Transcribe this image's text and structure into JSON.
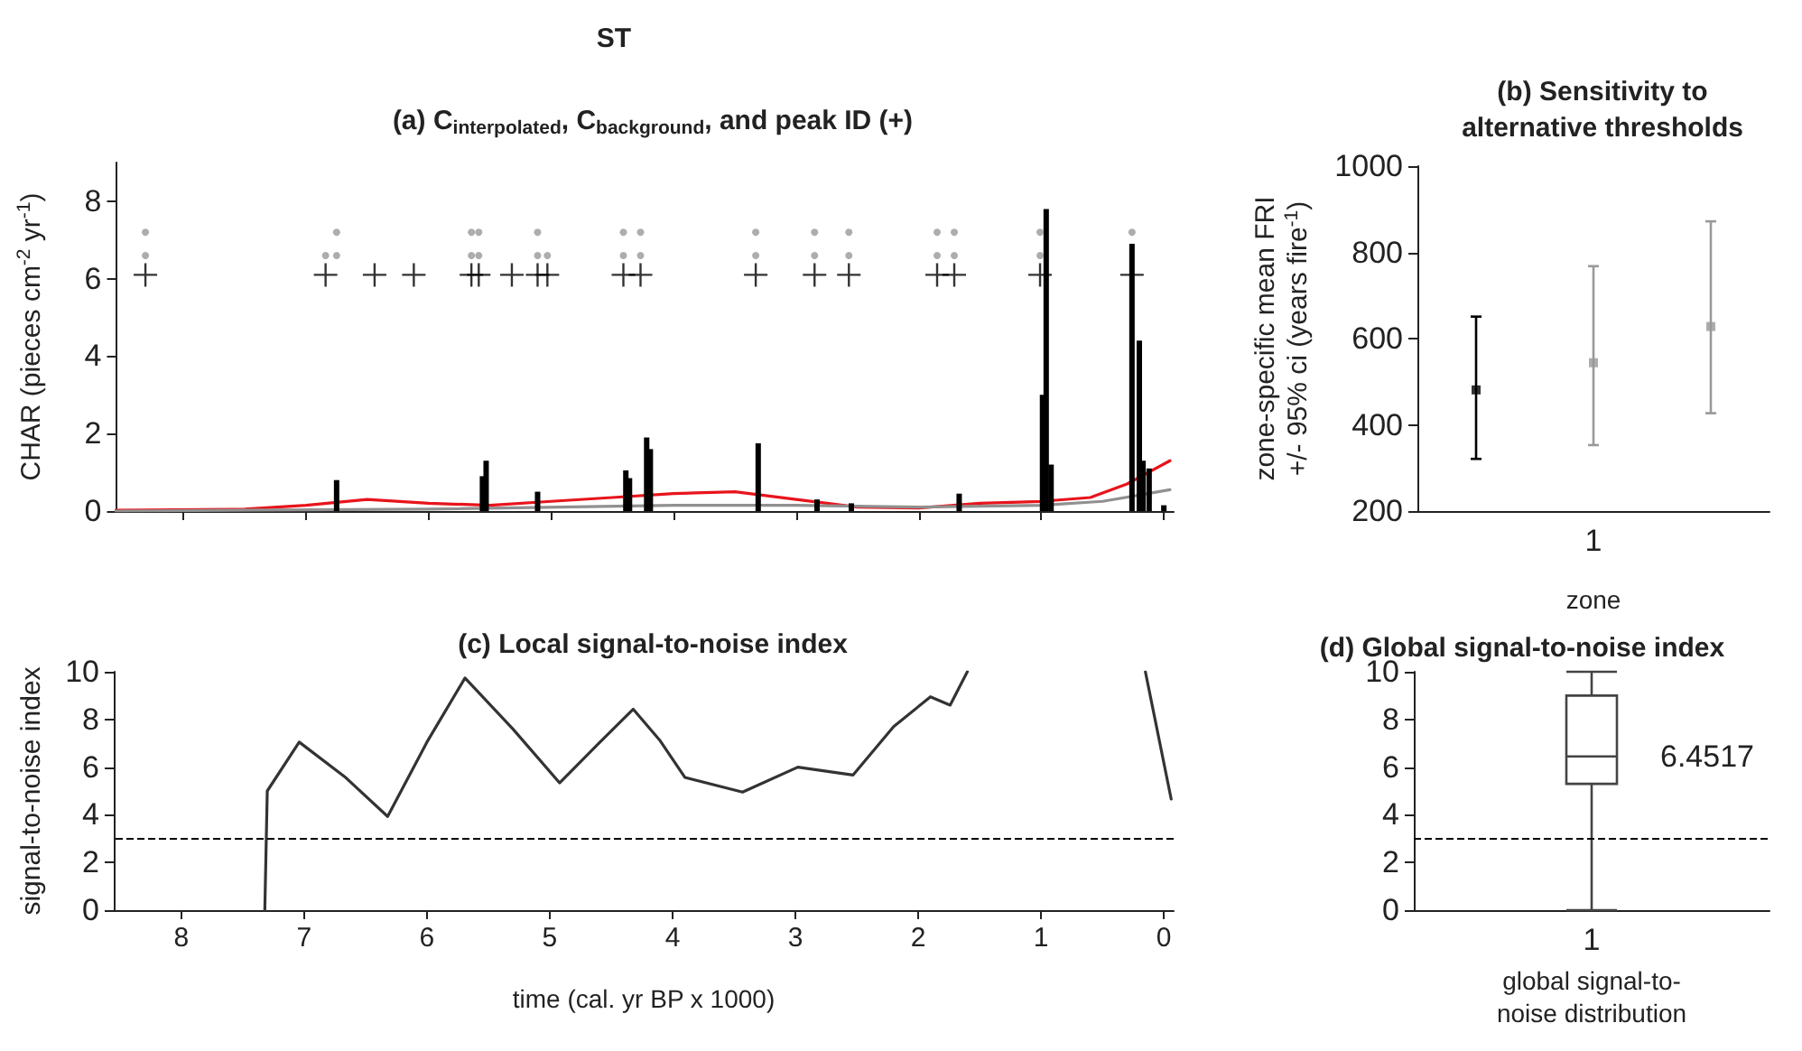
{
  "chart_data": [
    {
      "type": "bar",
      "title": "(a) C$_{interpolated}$, C$_{background}$, and peak ID (+)",
      "ylabel": "CHAR (pieces cm$^{-2}$ yr$^{-1}$)",
      "annotations": [
        "ST"
      ],
      "xlim": [
        8.55,
        -0.08
      ],
      "xticks": [
        8,
        7,
        6,
        5,
        4,
        3,
        2,
        1,
        0
      ],
      "ylim": [
        0,
        9
      ],
      "yticks": [
        0,
        2,
        4,
        6,
        8
      ],
      "tick_labels": "y",
      "series": [
        {
          "type": "bar",
          "color": "#000000",
          "x": [
            6.75,
            5.56,
            5.53,
            5.11,
            4.39,
            4.36,
            4.22,
            4.19,
            3.31,
            2.83,
            2.55,
            1.67,
            0.99,
            0.96,
            0.92,
            0.26,
            0.2,
            0.17,
            0.12,
            0.0
          ],
          "values": [
            0.8,
            0.9,
            1.3,
            0.5,
            1.05,
            0.85,
            1.9,
            1.6,
            1.75,
            0.3,
            0.2,
            0.45,
            3.0,
            7.8,
            1.2,
            6.9,
            4.4,
            1.3,
            1.1,
            0.15
          ]
        },
        {
          "type": "line",
          "color": "#e8141b",
          "x": [
            8.55,
            7.5,
            7.0,
            6.5,
            6.0,
            5.5,
            5.0,
            4.5,
            4.0,
            3.5,
            3.0,
            2.5,
            2.0,
            1.5,
            1.0,
            0.6,
            0.3,
            -0.05
          ],
          "values": [
            0.02,
            0.05,
            0.15,
            0.3,
            0.2,
            0.15,
            0.25,
            0.35,
            0.45,
            0.5,
            0.3,
            0.1,
            0.08,
            0.2,
            0.25,
            0.35,
            0.7,
            1.3
          ]
        },
        {
          "type": "line",
          "color": "#909090",
          "x": [
            8.55,
            6.0,
            4.0,
            3.0,
            2.0,
            1.0,
            0.5,
            -0.05
          ],
          "values": [
            0,
            0.05,
            0.15,
            0.15,
            0.1,
            0.15,
            0.25,
            0.55
          ]
        },
        {
          "type": "scatter",
          "marker": "cross",
          "color": "#000000",
          "x": [
            8.31,
            6.84,
            6.44,
            6.12,
            5.65,
            5.59,
            5.32,
            5.11,
            5.03,
            4.41,
            4.27,
            3.33,
            2.85,
            2.57,
            1.85,
            1.71,
            1.01,
            0.26
          ],
          "values": [
            6.1,
            6.1,
            6.1,
            6.1,
            6.1,
            6.1,
            6.1,
            6.1,
            6.1,
            6.1,
            6.1,
            6.1,
            6.1,
            6.1,
            6.1,
            6.1,
            6.1,
            6.1
          ]
        },
        {
          "type": "scatter",
          "marker": "circle",
          "color": "#999999",
          "x": [
            8.31,
            8.31,
            6.84,
            6.75,
            6.75,
            5.65,
            5.65,
            5.59,
            5.59,
            5.11,
            5.11,
            5.03,
            4.41,
            4.41,
            4.27,
            4.27,
            3.33,
            3.33,
            2.85,
            2.85,
            2.57,
            2.57,
            1.85,
            1.85,
            1.71,
            1.71,
            1.01,
            1.01,
            0.26
          ],
          "values": [
            7.2,
            6.6,
            6.6,
            6.6,
            7.2,
            7.2,
            6.6,
            7.2,
            6.6,
            7.2,
            6.6,
            6.6,
            7.2,
            6.6,
            7.2,
            6.6,
            7.2,
            6.6,
            7.2,
            6.6,
            7.2,
            6.6,
            7.2,
            6.6,
            7.2,
            6.6,
            7.2,
            6.6,
            7.2
          ]
        }
      ]
    },
    {
      "type": "scatter",
      "title": "(b) Sensitivity to alternative thresholds",
      "xlabel": "zone",
      "ylabel": "zone-specific mean FRI +/- 95% ci (years fire$^{-1}$)",
      "categories": [
        null,
        "1",
        null
      ],
      "ylim": [
        200,
        1000
      ],
      "yticks": [
        200,
        400,
        600,
        800,
        1000
      ],
      "series": [
        {
          "marker": "square",
          "colors": [
            "#000000",
            "#999999",
            "#999999"
          ],
          "values": [
            481,
            544,
            628
          ],
          "errors": [
            [
              321,
              651
            ],
            [
              353,
              768
            ],
            [
              427,
              872
            ]
          ]
        }
      ]
    },
    {
      "type": "line",
      "title": "(c) Local signal-to-noise index",
      "xlabel": "time (cal. yr BP x 1000)",
      "ylabel": "signal-to-noise index",
      "xlim": [
        8.55,
        -0.08
      ],
      "xticks": [
        8,
        7,
        6,
        5,
        4,
        3,
        2,
        1,
        0
      ],
      "ylim": [
        0,
        10
      ],
      "yticks": [
        0,
        2,
        4,
        6,
        8,
        10
      ],
      "ref_lines": [
        {
          "axis": "y",
          "value": 3,
          "line_style": "dashed",
          "color": "#000000"
        }
      ],
      "series": [
        {
          "color": "#333333",
          "x": [
            7.32,
            7.3,
            7.04,
            6.67,
            6.32,
            6.0,
            5.69,
            5.3,
            4.92,
            4.6,
            4.32,
            4.1,
            3.9,
            3.43,
            2.98,
            2.53,
            2.2,
            1.9,
            1.74,
            1.6,
            1.0,
            0.15,
            -0.06
          ],
          "values": [
            0,
            5.0,
            7.05,
            5.6,
            3.93,
            7.05,
            9.74,
            7.6,
            5.34,
            7.0,
            8.43,
            7.1,
            5.57,
            4.95,
            6.0,
            5.67,
            7.7,
            8.95,
            8.6,
            10,
            null,
            10,
            4.66
          ]
        }
      ]
    },
    {
      "type": "box",
      "title": "(d) Global signal-to-noise index",
      "xlabel": "global signal-to-noise distribution",
      "categories": [
        "1"
      ],
      "ylim": [
        0,
        10
      ],
      "yticks": [
        0,
        2,
        4,
        6,
        8,
        10
      ],
      "boxes": [
        {
          "low": 0,
          "q1": 5.3,
          "median": 6.45,
          "q3": 9.0,
          "high": 10
        }
      ],
      "ref_lines": [
        {
          "axis": "y",
          "value": 3,
          "line_style": "dashed",
          "color": "#000000"
        }
      ],
      "annotations": [
        {
          "text": "6.4517",
          "x": "1",
          "y": 6.45
        }
      ]
    }
  ]
}
